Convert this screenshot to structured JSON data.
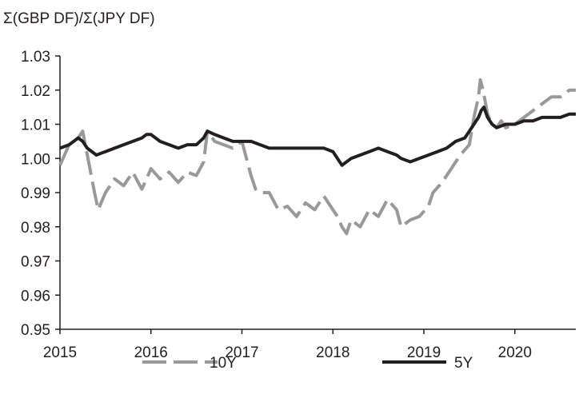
{
  "chart_data": {
    "type": "line",
    "title": "",
    "ylabel": "Σ(GBP DF)/Σ(JPY DF)",
    "xlabel": "",
    "ylim": [
      0.95,
      1.03
    ],
    "xlim": [
      2015.0,
      2020.67
    ],
    "yticks": [
      "0.95",
      "0.96",
      "0.97",
      "0.98",
      "0.99",
      "1.00",
      "1.01",
      "1.02",
      "1.03"
    ],
    "xticks": [
      "2015",
      "2016",
      "2017",
      "2018",
      "2019",
      "2020"
    ],
    "grid": false,
    "legend_position": "bottom",
    "series": [
      {
        "name": "10Y",
        "color": "#999999",
        "style": "dashed",
        "x": [
          2015.0,
          2015.1,
          2015.2,
          2015.25,
          2015.33,
          2015.38,
          2015.42,
          2015.5,
          2015.6,
          2015.7,
          2015.8,
          2015.9,
          2016.0,
          2016.1,
          2016.2,
          2016.3,
          2016.4,
          2016.5,
          2016.58,
          2016.62,
          2016.7,
          2016.8,
          2016.9,
          2017.0,
          2017.1,
          2017.15,
          2017.2,
          2017.3,
          2017.4,
          2017.5,
          2017.6,
          2017.7,
          2017.8,
          2017.9,
          2018.0,
          2018.05,
          2018.1,
          2018.15,
          2018.2,
          2018.3,
          2018.4,
          2018.5,
          2018.6,
          2018.7,
          2018.75,
          2018.85,
          2018.95,
          2019.05,
          2019.1,
          2019.2,
          2019.3,
          2019.4,
          2019.5,
          2019.55,
          2019.6,
          2019.62,
          2019.65,
          2019.7,
          2019.75,
          2019.8,
          2019.85,
          2019.9,
          2020.0,
          2020.1,
          2020.2,
          2020.3,
          2020.4,
          2020.5,
          2020.6,
          2020.67
        ],
        "values": [
          0.998,
          1.004,
          1.006,
          1.008,
          0.997,
          0.99,
          0.985,
          0.99,
          0.994,
          0.992,
          0.996,
          0.991,
          0.997,
          0.994,
          0.996,
          0.993,
          0.996,
          0.995,
          0.999,
          1.008,
          1.005,
          1.004,
          1.003,
          1.005,
          0.995,
          0.991,
          0.99,
          0.99,
          0.985,
          0.986,
          0.983,
          0.987,
          0.985,
          0.989,
          0.985,
          0.983,
          0.98,
          0.978,
          0.982,
          0.98,
          0.985,
          0.983,
          0.988,
          0.985,
          0.98,
          0.982,
          0.983,
          0.986,
          0.99,
          0.993,
          0.997,
          1.001,
          1.004,
          1.012,
          1.018,
          1.023,
          1.02,
          1.013,
          1.01,
          1.009,
          1.011,
          1.009,
          1.01,
          1.012,
          1.014,
          1.016,
          1.018,
          1.018,
          1.02,
          1.02
        ]
      },
      {
        "name": "5Y",
        "color": "#231f20",
        "style": "solid",
        "x": [
          2015.0,
          2015.1,
          2015.2,
          2015.25,
          2015.3,
          2015.4,
          2015.5,
          2015.6,
          2015.7,
          2015.8,
          2015.9,
          2015.95,
          2016.0,
          2016.1,
          2016.2,
          2016.3,
          2016.4,
          2016.5,
          2016.58,
          2016.62,
          2016.7,
          2016.8,
          2016.9,
          2017.0,
          2017.1,
          2017.2,
          2017.3,
          2017.4,
          2017.5,
          2017.6,
          2017.7,
          2017.8,
          2017.9,
          2018.0,
          2018.05,
          2018.1,
          2018.15,
          2018.2,
          2018.3,
          2018.4,
          2018.5,
          2018.6,
          2018.7,
          2018.75,
          2018.85,
          2018.95,
          2019.05,
          2019.15,
          2019.25,
          2019.35,
          2019.45,
          2019.5,
          2019.55,
          2019.6,
          2019.63,
          2019.66,
          2019.7,
          2019.75,
          2019.8,
          2019.9,
          2020.0,
          2020.1,
          2020.2,
          2020.3,
          2020.4,
          2020.5,
          2020.6,
          2020.67
        ],
        "values": [
          1.003,
          1.004,
          1.006,
          1.005,
          1.003,
          1.001,
          1.002,
          1.003,
          1.004,
          1.005,
          1.006,
          1.007,
          1.007,
          1.005,
          1.004,
          1.003,
          1.004,
          1.004,
          1.006,
          1.008,
          1.007,
          1.006,
          1.005,
          1.005,
          1.005,
          1.004,
          1.003,
          1.003,
          1.003,
          1.003,
          1.003,
          1.003,
          1.003,
          1.002,
          1.0,
          0.998,
          0.999,
          1.0,
          1.001,
          1.002,
          1.003,
          1.002,
          1.001,
          1.0,
          0.999,
          1.0,
          1.001,
          1.002,
          1.003,
          1.005,
          1.006,
          1.008,
          1.01,
          1.012,
          1.014,
          1.015,
          1.012,
          1.01,
          1.009,
          1.01,
          1.01,
          1.011,
          1.011,
          1.012,
          1.012,
          1.012,
          1.013,
          1.013
        ]
      }
    ]
  }
}
